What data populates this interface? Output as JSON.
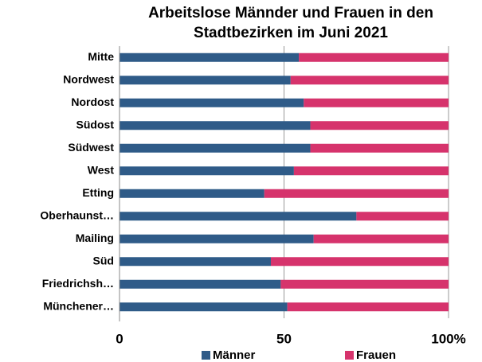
{
  "chart_data": {
    "type": "stacked_barh",
    "title": "Arbeitslose Männder und Frauen in den Stadtbezirken im Juni 2021",
    "categories": [
      "Mitte",
      "Nordwest",
      "Nordost",
      "Südost",
      "Südwest",
      "West",
      "Etting",
      "Oberhaunst…",
      "Mailing",
      "Süd",
      "Friedrichsh…",
      "Münchener…"
    ],
    "series": [
      {
        "name": "Männer",
        "color": "#2f5b88",
        "values": [
          54.5,
          52,
          56,
          58,
          58,
          53,
          44,
          72,
          59,
          46,
          49,
          51
        ]
      },
      {
        "name": "Frauen",
        "color": "#d6336c",
        "values": [
          45.5,
          48,
          44,
          42,
          42,
          47,
          56,
          28,
          41,
          54,
          51,
          49
        ]
      }
    ],
    "xlim": [
      0,
      100
    ],
    "xticks": [
      0,
      50,
      {
        "value": 100,
        "label": "100%"
      }
    ],
    "grid": true,
    "legend": "bottom"
  }
}
